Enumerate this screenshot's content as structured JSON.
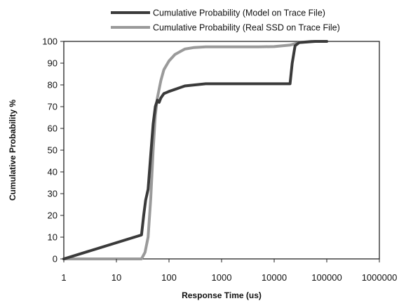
{
  "chart_data": {
    "type": "line",
    "xlabel": "Response Time (us)",
    "ylabel": "Cumulative Probability %",
    "x_scale": "log",
    "xlim": [
      1,
      1000000
    ],
    "ylim": [
      0,
      100
    ],
    "x_ticks": [
      "1",
      "10",
      "100",
      "1000",
      "10000",
      "100000",
      "1000000"
    ],
    "y_ticks": [
      "0",
      "10",
      "20",
      "30",
      "40",
      "50",
      "60",
      "70",
      "80",
      "90",
      "100"
    ],
    "grid": false,
    "legend_position": "top",
    "series": [
      {
        "name": "Cumulative Probability (Model on Trace File)",
        "color": "#3a3a3a",
        "x": [
          1,
          30,
          33,
          36,
          40,
          45,
          50,
          55,
          60,
          65,
          70,
          80,
          90,
          100,
          200,
          500,
          1000,
          5000,
          20000,
          22000,
          25000,
          30000,
          60000,
          100000
        ],
        "y": [
          0,
          11,
          20,
          27,
          32,
          48,
          62,
          70,
          73,
          72,
          74,
          76,
          76.5,
          77,
          79.5,
          80.5,
          80.5,
          80.5,
          80.5,
          90,
          98,
          99.5,
          100,
          100
        ]
      },
      {
        "name": "Cumulative Probability (Real SSD on Trace File)",
        "color": "#9a9a9a",
        "x": [
          1,
          30,
          35,
          40,
          45,
          50,
          55,
          60,
          70,
          80,
          100,
          130,
          200,
          300,
          500,
          1000,
          5000,
          10000,
          20000,
          30000,
          50000,
          100000
        ],
        "y": [
          0,
          0,
          3,
          10,
          28,
          50,
          66,
          74,
          82,
          87,
          91,
          94,
          96.5,
          97.2,
          97.5,
          97.5,
          97.5,
          97.6,
          98.3,
          99.5,
          100,
          100
        ]
      }
    ]
  }
}
